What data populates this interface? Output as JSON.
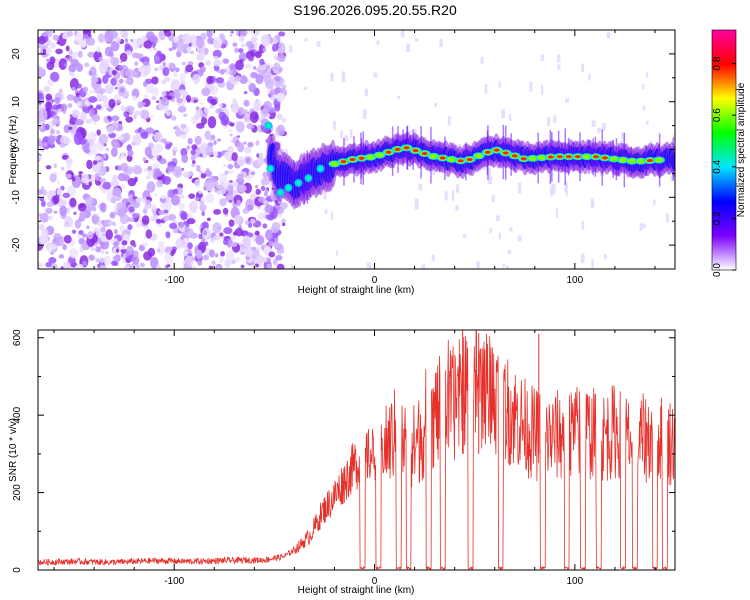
{
  "title": "S196.2026.095.20.55.R20",
  "chart_data": [
    {
      "type": "heatmap",
      "xlabel": "Height of straight line (km)",
      "ylabel": "Frequency (Hz)",
      "xlim": [
        -168,
        150
      ],
      "ylim": [
        -25,
        25
      ],
      "xticks": [
        -100,
        0,
        100
      ],
      "yticks": [
        -20,
        -10,
        0,
        10,
        20
      ],
      "colorbar": {
        "label": "Normalized spectral amplitude",
        "range": [
          0,
          0.93
        ],
        "ticks": [
          "0.0",
          "0.2",
          "0.4",
          "0.6",
          "0.8"
        ],
        "tick_values": [
          0,
          0.2,
          0.4,
          0.6,
          0.8
        ],
        "colors": [
          "#ffffff",
          "#7b00ff",
          "#0000ff",
          "#00e5ff",
          "#00ff00",
          "#ffff00",
          "#ff0000",
          "#ff00a0"
        ]
      },
      "track_centre_hz": [
        {
          "x": -50,
          "y": -5
        },
        {
          "x": -40,
          "y": -7
        },
        {
          "x": -30,
          "y": -5
        },
        {
          "x": -20,
          "y": -3
        },
        {
          "x": -10,
          "y": -2
        },
        {
          "x": 0,
          "y": -1.5
        },
        {
          "x": 15,
          "y": 0.5
        },
        {
          "x": 30,
          "y": -1.5
        },
        {
          "x": 45,
          "y": -2.5
        },
        {
          "x": 60,
          "y": 0
        },
        {
          "x": 75,
          "y": -2
        },
        {
          "x": 90,
          "y": -1.5
        },
        {
          "x": 110,
          "y": -1.5
        },
        {
          "x": 130,
          "y": -2.5
        },
        {
          "x": 150,
          "y": -2
        }
      ]
    },
    {
      "type": "line",
      "xlabel": "Height of straight line (km)",
      "ylabel": "SNR (10 * v/v)",
      "xlim": [
        -168,
        150
      ],
      "ylim": [
        0,
        620
      ],
      "xticks": [
        -100,
        0,
        100
      ],
      "yticks": [
        0,
        200,
        400,
        600
      ],
      "line_color": "#e8302a",
      "series": [
        {
          "name": "SNR",
          "x": [
            -168,
            -150,
            -130,
            -110,
            -90,
            -70,
            -55,
            -45,
            -38,
            -32,
            -26,
            -20,
            -15,
            -10,
            -5,
            0,
            5,
            10,
            15,
            20,
            25,
            30,
            35,
            40,
            45,
            50,
            55,
            60,
            65,
            70,
            75,
            80,
            85,
            90,
            95,
            100,
            105,
            110,
            115,
            120,
            125,
            130,
            135,
            140,
            145,
            150
          ],
          "values": [
            20,
            22,
            20,
            24,
            22,
            25,
            26,
            35,
            60,
            90,
            150,
            190,
            230,
            270,
            290,
            300,
            310,
            350,
            330,
            320,
            360,
            400,
            420,
            430,
            460,
            480,
            470,
            450,
            420,
            400,
            370,
            350,
            340,
            345,
            350,
            355,
            360,
            350,
            345,
            360,
            340,
            330,
            340,
            350,
            330,
            335
          ]
        }
      ],
      "dropouts_km": [
        -6,
        2,
        12,
        17,
        27,
        34,
        48,
        63,
        84,
        96,
        104,
        112,
        124,
        130,
        140,
        145
      ],
      "peaks": [
        {
          "x": 44,
          "y": 620
        },
        {
          "x": 52,
          "y": 612
        },
        {
          "x": 82,
          "y": 610
        }
      ]
    }
  ]
}
